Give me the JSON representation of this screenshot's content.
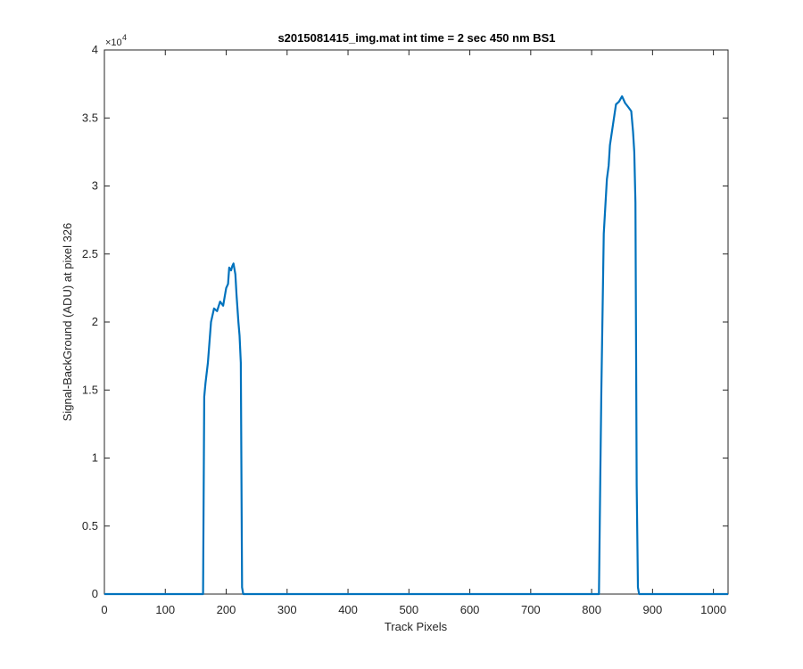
{
  "chart_data": {
    "type": "line",
    "title": "s2015081415_img.mat int time = 2 sec  450 nm BS1",
    "xlabel": "Track Pixels",
    "ylabel": "Signal-BackGround (ADU) at pixel 326",
    "xlim": [
      0,
      1024
    ],
    "ylim": [
      0,
      40000
    ],
    "x_ticks": [
      0,
      100,
      200,
      300,
      400,
      500,
      600,
      700,
      800,
      900,
      1000
    ],
    "x_tick_labels": [
      "0",
      "100",
      "200",
      "300",
      "400",
      "500",
      "600",
      "700",
      "800",
      "900",
      "1000"
    ],
    "y_ticks": [
      0,
      5000,
      10000,
      15000,
      20000,
      25000,
      30000,
      35000,
      40000
    ],
    "y_tick_labels": [
      "0",
      "0.5",
      "1",
      "1.5",
      "2",
      "2.5",
      "3",
      "3.5",
      "4"
    ],
    "y_exponent_base": "×10",
    "y_exponent_power": "4",
    "grid": false,
    "line_color": "#0072BD",
    "series": [
      {
        "x": [
          0,
          100,
          162,
          164,
          166,
          170,
          175,
          180,
          185,
          190,
          195,
          200,
          203,
          205,
          208,
          210,
          212,
          215,
          217,
          220,
          222,
          224,
          226,
          228,
          300,
          400,
          500,
          600,
          700,
          800,
          812,
          814,
          816,
          820,
          825,
          828,
          830,
          835,
          840,
          845,
          850,
          855,
          860,
          865,
          868,
          870,
          872,
          874,
          876,
          878,
          900,
          1000,
          1024
        ],
        "y": [
          0,
          0,
          0,
          14500,
          15500,
          17000,
          20000,
          21000,
          20800,
          21500,
          21200,
          22500,
          22800,
          24000,
          23800,
          24100,
          24300,
          23500,
          22000,
          20000,
          19000,
          17000,
          500,
          0,
          0,
          0,
          0,
          0,
          0,
          0,
          0,
          8000,
          15000,
          26500,
          30500,
          31500,
          33000,
          34500,
          36000,
          36200,
          36600,
          36100,
          35800,
          35500,
          34000,
          32500,
          28800,
          8000,
          500,
          0,
          0,
          0,
          0
        ]
      }
    ]
  }
}
